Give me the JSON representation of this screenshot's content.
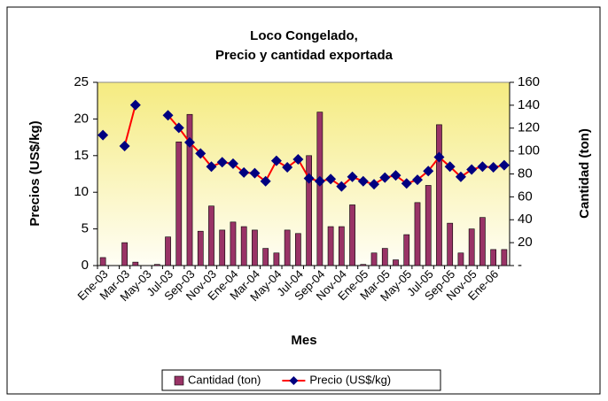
{
  "chart_data": {
    "type": "bar",
    "title": "Loco Congelado,",
    "subtitle": "Precio y cantidad exportada",
    "x_label": "Mes",
    "y_label": "Precios (US$/kg)",
    "y2_label": "Cantidad (ton)",
    "categories": [
      "Ene-03",
      null,
      "Mar-03",
      null,
      "May-03",
      null,
      "Jul-03",
      null,
      "Sep-03",
      null,
      "Nov-03",
      null,
      "Ene-04",
      null,
      "Mar-04",
      null,
      "May-04",
      null,
      "Jul-04",
      null,
      "Sep-04",
      null,
      "Nov-04",
      null,
      "Ene-05",
      null,
      "Mar-05",
      null,
      "May-05",
      null,
      "Jul-05",
      null,
      "Sep-05",
      null,
      "Nov-05",
      null,
      "Ene-06",
      null
    ],
    "series": [
      {
        "name": "Cantidad (ton)",
        "type": "bar",
        "axis": "y2",
        "color": "#993366",
        "values": [
          7,
          0,
          20,
          3,
          0,
          1,
          25,
          108,
          132,
          30,
          52,
          31,
          38,
          34,
          31,
          15,
          11,
          31,
          28,
          96,
          134,
          34,
          34,
          53,
          1,
          11,
          15,
          5,
          27,
          55,
          70,
          123,
          37,
          11,
          32,
          42,
          14,
          14
        ]
      },
      {
        "name": "Precio (US$/kg)",
        "type": "line",
        "color": "#ff0000",
        "marker_color": "#000080",
        "values": [
          17.8,
          null,
          16.3,
          21.9,
          null,
          null,
          20.5,
          18.8,
          16.8,
          15.3,
          13.5,
          14.1,
          13.9,
          12.7,
          12.6,
          11.5,
          14.3,
          13.4,
          14.5,
          11.9,
          11.5,
          11.8,
          10.8,
          12.1,
          11.5,
          11.1,
          12.0,
          12.3,
          11.2,
          11.7,
          12.9,
          14.8,
          13.5,
          12.1,
          13.1,
          13.5,
          13.4,
          13.7
        ]
      }
    ],
    "ylim": [
      0,
      25
    ],
    "yticks": [
      0,
      5,
      10,
      15,
      20,
      25
    ],
    "y2lim": [
      0,
      160
    ],
    "y2ticks": [
      {
        "value": 0,
        "label": "-"
      },
      20,
      40,
      60,
      80,
      100,
      120,
      140,
      160
    ],
    "legend": "bottom"
  }
}
